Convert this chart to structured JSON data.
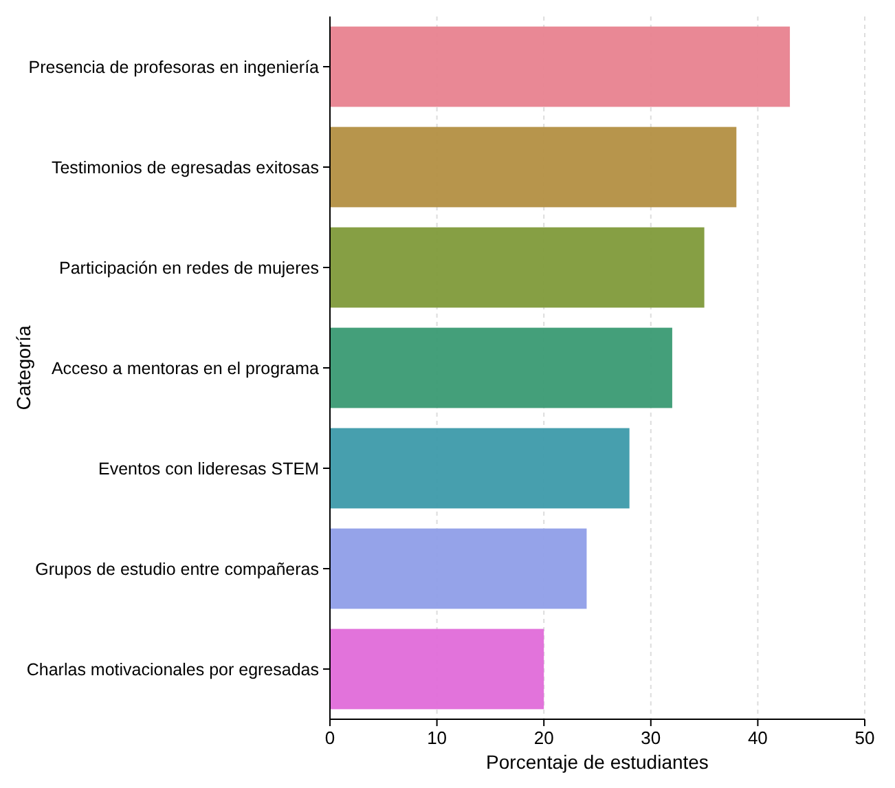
{
  "chart_data": {
    "type": "bar",
    "orientation": "horizontal",
    "xlabel": "Porcentaje de estudiantes",
    "ylabel": "Categoría",
    "categories": [
      "Presencia de profesoras en ingeniería",
      "Testimonios de egresadas exitosas",
      "Participación en redes de mujeres",
      "Acceso a mentoras en el programa",
      "Eventos con lideresas STEM",
      "Grupos de estudio entre compañeras",
      "Charlas motivacionales por egresadas"
    ],
    "values": [
      43,
      38,
      35,
      32,
      28,
      24,
      20
    ],
    "colors": [
      "#e8828f",
      "#b38f42",
      "#7f9a3a",
      "#3a9a73",
      "#3d9aaa",
      "#8f9ee8",
      "#e06cd9"
    ],
    "xlim": [
      0,
      50
    ],
    "xticks": [
      0,
      10,
      20,
      30,
      40,
      50
    ],
    "grid": "x"
  }
}
